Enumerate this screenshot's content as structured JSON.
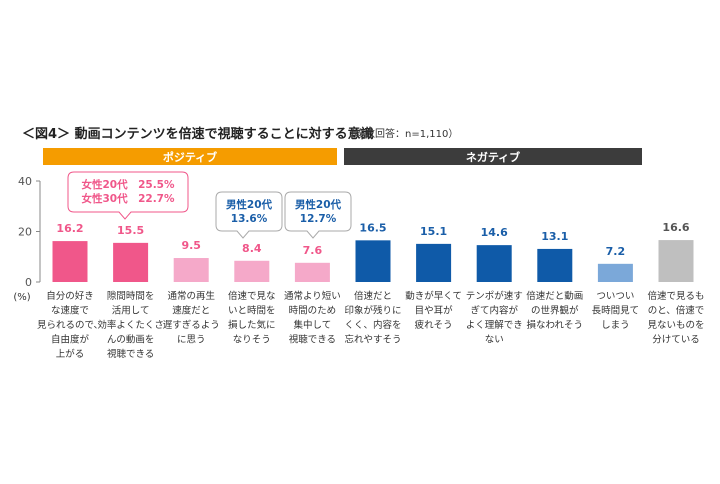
{
  "title": "＜図4＞ 動画コンテンツを倍速で視聴することに対する意識",
  "subtitle": "（複数回答：n=1,110）",
  "groups": [
    {
      "label": "ポジティブ",
      "color": "#f59c00"
    },
    {
      "label": "ネガティブ",
      "color": "#3c3c3c"
    }
  ],
  "callouts": [
    {
      "lines": [
        "女性20代　25.5%",
        "女性30代　22.7%"
      ],
      "color": "#f0578a",
      "border": "#f0578a"
    },
    {
      "lines": [
        "男性20代",
        "13.6%"
      ],
      "color": "#1a5ea8",
      "border": "#aaaaaa"
    },
    {
      "lines": [
        "男性20代",
        "12.7%"
      ],
      "color": "#1a5ea8",
      "border": "#aaaaaa"
    }
  ],
  "chart_data": {
    "type": "bar",
    "ylabel": "(%)",
    "ylim": [
      0,
      40
    ],
    "yticks": [
      "0",
      "20",
      "40"
    ],
    "categories": [
      [
        "自分の好き",
        "な速度で",
        "見られるので、",
        "自由度が",
        "上がる"
      ],
      [
        "隙間時間を",
        "活用して",
        "効率よくたくさ",
        "んの動画を",
        "視聴できる"
      ],
      [
        "通常の再生",
        "速度だと",
        "遅すぎるよう",
        "に思う"
      ],
      [
        "倍速で見な",
        "いと時間を",
        "損した気に",
        "なりそう"
      ],
      [
        "通常より短い",
        "時間のため",
        "集中して",
        "視聴できる"
      ],
      [
        "倍速だと",
        "印象が残りに",
        "くく、内容を",
        "忘れやすそう"
      ],
      [
        "動きが早くて",
        "目や耳が",
        "疲れそう"
      ],
      [
        "テンポが速す",
        "ぎて内容が",
        "よく理解でき",
        "ない"
      ],
      [
        "倍速だと動画",
        "の世界観が",
        "損なわれそう"
      ],
      [
        "ついつい",
        "長時間見て",
        "しまう"
      ],
      [
        "倍速で見るも",
        "のと、倍速で",
        "見ないものを",
        "分けている"
      ]
    ],
    "values": [
      16.2,
      15.5,
      9.5,
      8.4,
      7.6,
      16.5,
      15.1,
      14.6,
      13.1,
      7.2,
      16.6
    ],
    "value_labels": [
      "16.2",
      "15.5",
      "9.5",
      "8.4",
      "7.6",
      "16.5",
      "15.1",
      "14.6",
      "13.1",
      "7.2",
      "16.6"
    ],
    "bar_colors": [
      "#f0578a",
      "#f0578a",
      "#f5a9c9",
      "#f5a9c9",
      "#f5a9c9",
      "#0f5aa8",
      "#0f5aa8",
      "#0f5aa8",
      "#0f5aa8",
      "#7ba8d9",
      "#bfbfbf"
    ],
    "label_colors": [
      "#f0578a",
      "#f0578a",
      "#f0578a",
      "#f0578a",
      "#f0578a",
      "#1a5ea8",
      "#1a5ea8",
      "#1a5ea8",
      "#1a5ea8",
      "#1a5ea8",
      "#555555"
    ],
    "grid": false
  }
}
